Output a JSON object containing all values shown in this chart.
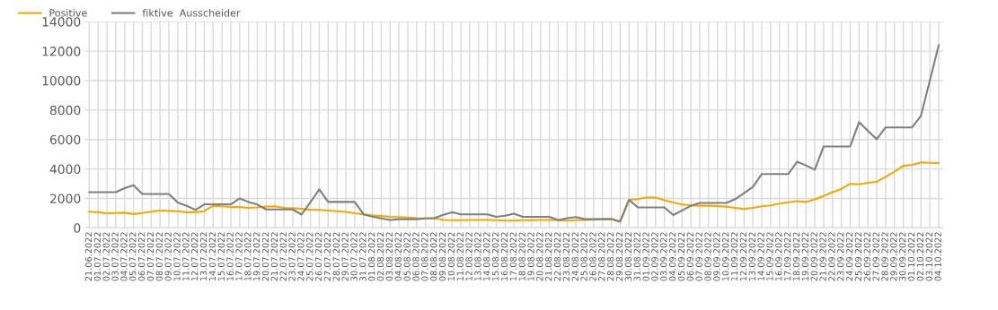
{
  "chart_data": {
    "type": "line",
    "categories": [
      "21.06.2022",
      "01.07.2022",
      "02.07.2022",
      "03.07.2022",
      "04.07.2022",
      "05.07.2022",
      "06.07.2022",
      "07.07.2022",
      "08.07.2022",
      "09.07.2022",
      "10.07.2022",
      "11.07.2022",
      "12.07.2022",
      "13.07.2022",
      "14.07.2022",
      "15.07.2022",
      "16.07.2022",
      "17.07.2022",
      "18.07.2022",
      "19.07.2022",
      "20.07.2022",
      "21.07.2022",
      "22.07.2022",
      "23.07.2022",
      "24.07.2022",
      "25.07.2022",
      "26.07.2022",
      "27.07.2022",
      "28.07.2022",
      "29.07.2022",
      "30.07.2022",
      "31.07.2022",
      "01.08.2022",
      "02.08.2022",
      "03.08.2022",
      "04.08.2022",
      "05.08.2022",
      "06.08.2022",
      "07.08.2022",
      "08.08.2022",
      "09.08.2022",
      "10.08.2022",
      "11.08.2022",
      "12.08.2022",
      "13.08.2022",
      "14.08.2022",
      "15.08.2022",
      "16.08.2022",
      "17.08.2022",
      "18.08.2022",
      "19.08.2022",
      "20.08.2022",
      "21.08.2022",
      "22.08.2022",
      "23.08.2022",
      "24.08.2022",
      "25.08.2022",
      "26.08.2022",
      "27.08.2022",
      "28.08.2022",
      "29.08.2022",
      "30.08.2022",
      "31.08.2022",
      "01.09.2022",
      "02.09.2022",
      "03.09.2022",
      "04.09.2022",
      "05.09.2022",
      "06.09.2022",
      "07.09.2022",
      "08.09.2022",
      "09.09.2022",
      "10.09.2022",
      "11.09.2022",
      "12.09.2022",
      "13.09.2022",
      "14.09.2022",
      "15.09.2022",
      "16.09.2022",
      "17.09.2022",
      "18.09.2022",
      "19.09.2022",
      "20.09.2022",
      "21.09.2022",
      "22.09.2022",
      "23.09.2022",
      "24.09.2022",
      "25.09.2022",
      "26.09.2022",
      "27.09.2022",
      "28.09.2022",
      "29.09.2022",
      "30.09.2022",
      "01.10.2022",
      "02.10.2022",
      "03.10.2022",
      "04.10.2022"
    ],
    "series": [
      {
        "name": "Positive",
        "color": "#f5a800",
        "values": [
          1100,
          1060,
          990,
          1010,
          1030,
          940,
          1010,
          1100,
          1180,
          1150,
          1130,
          1060,
          1060,
          1130,
          1500,
          1460,
          1410,
          1410,
          1360,
          1390,
          1440,
          1460,
          1360,
          1340,
          1290,
          1220,
          1220,
          1180,
          1130,
          1080,
          990,
          920,
          850,
          800,
          750,
          730,
          700,
          660,
          640,
          660,
          540,
          520,
          520,
          540,
          540,
          540,
          520,
          490,
          490,
          520,
          520,
          540,
          540,
          520,
          490,
          520,
          540,
          560,
          590,
          610,
          450,
          1900,
          1950,
          2070,
          2050,
          1880,
          1720,
          1580,
          1530,
          1500,
          1500,
          1480,
          1440,
          1360,
          1290,
          1360,
          1460,
          1530,
          1650,
          1740,
          1810,
          1760,
          1930,
          2160,
          2420,
          2640,
          2990,
          2960,
          3060,
          3130,
          3460,
          3810,
          4210,
          4280,
          4450,
          4420,
          4400
        ]
      },
      {
        "name": "fiktive  Ausscheider",
        "color": "#7f7f7f",
        "values": [
          2420,
          2420,
          2420,
          2420,
          2700,
          2900,
          2300,
          2300,
          2300,
          2300,
          1720,
          1500,
          1220,
          1600,
          1600,
          1600,
          1600,
          2000,
          1760,
          1580,
          1250,
          1250,
          1250,
          1250,
          900,
          1750,
          2610,
          1760,
          1760,
          1760,
          1760,
          920,
          760,
          640,
          540,
          590,
          590,
          590,
          640,
          660,
          890,
          1060,
          920,
          920,
          920,
          920,
          750,
          820,
          960,
          750,
          750,
          750,
          750,
          520,
          660,
          730,
          590,
          590,
          590,
          590,
          420,
          1900,
          1390,
          1390,
          1390,
          1390,
          870,
          1180,
          1500,
          1690,
          1690,
          1690,
          1690,
          1950,
          2350,
          2780,
          3650,
          3650,
          3650,
          3650,
          4490,
          4240,
          3950,
          5530,
          5530,
          5530,
          5530,
          7180,
          6590,
          6020,
          6820,
          6820,
          6820,
          6820,
          7620,
          10000,
          12400
        ]
      }
    ],
    "ylim": [
      0,
      14000
    ],
    "yticks": [
      0,
      2000,
      4000,
      6000,
      8000,
      10000,
      12000,
      14000
    ],
    "grid": true,
    "legend": "top left",
    "marker": "none",
    "line_style": "solid"
  }
}
